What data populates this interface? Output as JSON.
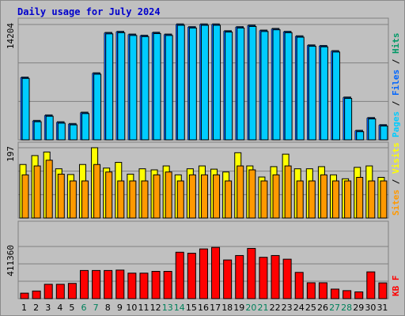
{
  "chart_data": [
    {
      "type": "bar",
      "title": "Daily usage for July 2024",
      "categories": [
        "1",
        "2",
        "3",
        "4",
        "5",
        "6",
        "7",
        "8",
        "9",
        "10",
        "11",
        "12",
        "13",
        "14",
        "15",
        "16",
        "17",
        "18",
        "19",
        "20",
        "21",
        "22",
        "23",
        "24",
        "25",
        "26",
        "27",
        "28",
        "29",
        "30",
        "31"
      ],
      "weekend_days": [
        "6",
        "7",
        "13",
        "14",
        "20",
        "21",
        "27",
        "28"
      ],
      "ymax_label": "14204",
      "ylim": [
        0,
        14204
      ],
      "ylabel_parts": [
        {
          "text": "Pages",
          "color": "#00ccff"
        },
        {
          "text": " / ",
          "color": "#000000"
        },
        {
          "text": "Files",
          "color": "#0066ff"
        },
        {
          "text": " / ",
          "color": "#000000"
        },
        {
          "text": "Hits",
          "color": "#009966"
        }
      ],
      "series": [
        {
          "name": "Hits",
          "color": "#009966",
          "values": [
            7660,
            2325,
            3000,
            2150,
            1940,
            3330,
            8180,
            13150,
            13290,
            12950,
            12810,
            13180,
            12950,
            14204,
            13870,
            14204,
            14204,
            13370,
            13870,
            14060,
            13440,
            13650,
            13290,
            12740,
            11620,
            11550,
            10910,
            5200,
            1100,
            2675,
            1800
          ]
        },
        {
          "name": "Files",
          "color": "#0066ff",
          "values": [
            7660,
            2325,
            3000,
            2150,
            1940,
            3330,
            8180,
            13150,
            13290,
            12950,
            12810,
            13180,
            12950,
            14204,
            13870,
            14204,
            14204,
            13370,
            13870,
            14060,
            13440,
            13650,
            13290,
            12740,
            11620,
            11550,
            10910,
            5200,
            1100,
            2675,
            1800
          ]
        },
        {
          "name": "Pages",
          "color": "#00ccff",
          "values": [
            7660,
            2325,
            3000,
            2150,
            1940,
            3330,
            8180,
            13150,
            13290,
            12950,
            12810,
            13180,
            12950,
            14204,
            13870,
            14204,
            14204,
            13370,
            13870,
            14060,
            13440,
            13650,
            13290,
            12740,
            11620,
            11550,
            10910,
            5200,
            1100,
            2675,
            1800
          ]
        }
      ]
    },
    {
      "type": "bar",
      "ymax_label": "197",
      "ylim": [
        0,
        197
      ],
      "ylabel_parts": [
        {
          "text": "Sites",
          "color": "#ff9900"
        },
        {
          "text": " / ",
          "color": "#000000"
        },
        {
          "text": "Visits",
          "color": "#ffff00"
        }
      ],
      "series": [
        {
          "name": "Visits",
          "color": "#ffff00",
          "values": [
            150,
            175,
            185,
            138,
            122,
            150,
            197,
            140,
            156,
            123,
            138,
            135,
            146,
            121,
            138,
            146,
            137,
            129,
            183,
            146,
            115,
            144,
            179,
            138,
            138,
            144,
            121,
            110,
            142,
            146,
            114
          ]
        },
        {
          "name": "Sites",
          "color": "#ff9900",
          "values": [
            121,
            146,
            162,
            123,
            104,
            104,
            150,
            129,
            104,
            104,
            104,
            121,
            129,
            104,
            121,
            121,
            121,
            104,
            146,
            135,
            104,
            121,
            146,
            104,
            104,
            121,
            104,
            104,
            114,
            104,
            104
          ]
        }
      ]
    },
    {
      "type": "bar",
      "ymax_label": "411360",
      "ylim": [
        0,
        411360
      ],
      "ylabel_parts": [
        {
          "text": "KB F",
          "color": "#ff0000"
        }
      ],
      "series": [
        {
          "name": "KB F",
          "color": "#ff0000",
          "values": [
            43000,
            60000,
            113000,
            113000,
            120000,
            222000,
            222000,
            222000,
            225000,
            201000,
            201000,
            215000,
            215000,
            366000,
            358000,
            392000,
            404000,
            305000,
            340000,
            396000,
            326000,
            340000,
            311000,
            207000,
            125000,
            125000,
            75000,
            63000,
            53000,
            211000,
            124000
          ]
        }
      ]
    }
  ]
}
